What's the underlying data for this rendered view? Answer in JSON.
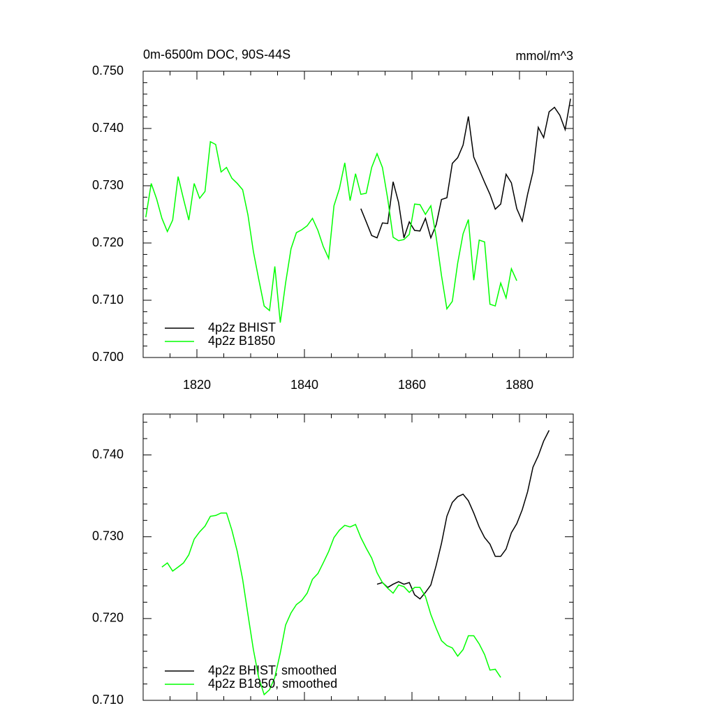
{
  "chart_data": [
    {
      "type": "line",
      "title": "0m-6500m DOC, 90S-44S",
      "units": "mmol/m^3",
      "xlim": [
        1810,
        1890
      ],
      "xticks": [
        1820,
        1840,
        1860,
        1880
      ],
      "xminorticks": [
        1815,
        1825,
        1830,
        1835,
        1845,
        1850,
        1855,
        1865,
        1870,
        1875,
        1885
      ],
      "ylim": [
        0.7,
        0.75
      ],
      "yticks": [
        {
          "value": 0.7,
          "label": "0.700"
        },
        {
          "value": 0.71,
          "label": "0.710"
        },
        {
          "value": 0.72,
          "label": "0.720"
        },
        {
          "value": 0.73,
          "label": "0.730"
        },
        {
          "value": 0.74,
          "label": "0.740"
        },
        {
          "value": 0.75,
          "label": "0.750"
        }
      ],
      "yminorticks": [
        0.702,
        0.704,
        0.706,
        0.708,
        0.712,
        0.714,
        0.716,
        0.718,
        0.722,
        0.724,
        0.726,
        0.728,
        0.732,
        0.734,
        0.736,
        0.738,
        0.742,
        0.744,
        0.746,
        0.748
      ],
      "legend": "lower left",
      "series": [
        {
          "name": "4p2z BHIST",
          "color": "#000000",
          "x": [
            1850.5,
            1851.5,
            1852.5,
            1853.5,
            1854.5,
            1855.5,
            1856.5,
            1857.5,
            1858.5,
            1859.5,
            1860.5,
            1861.5,
            1862.5,
            1863.5,
            1864.5,
            1865.5,
            1866.5,
            1867.5,
            1868.5,
            1869.5,
            1870.5,
            1871.5,
            1872.5,
            1873.5,
            1874.5,
            1875.5,
            1876.5,
            1877.5,
            1878.5,
            1879.5,
            1880.5,
            1881.5,
            1882.5,
            1883.5,
            1884.5,
            1885.5,
            1886.5,
            1887.5,
            1888.5,
            1889.5
          ],
          "values": [
            0.726,
            0.7237,
            0.7213,
            0.7209,
            0.7235,
            0.7234,
            0.7307,
            0.7271,
            0.7209,
            0.7237,
            0.7222,
            0.7221,
            0.7243,
            0.7209,
            0.7232,
            0.7276,
            0.7279,
            0.7339,
            0.7349,
            0.7371,
            0.7421,
            0.735,
            0.7328,
            0.7306,
            0.7285,
            0.7259,
            0.7268,
            0.732,
            0.7305,
            0.726,
            0.7238,
            0.7285,
            0.7324,
            0.7402,
            0.7384,
            0.7429,
            0.7437,
            0.7423,
            0.7398,
            0.7452
          ]
        },
        {
          "name": "4p2z B1850",
          "color": "#00ff00",
          "x": [
            1810.5,
            1811.5,
            1812.5,
            1813.5,
            1814.5,
            1815.5,
            1816.5,
            1817.5,
            1818.5,
            1819.5,
            1820.5,
            1821.5,
            1822.5,
            1823.5,
            1824.5,
            1825.5,
            1826.5,
            1827.5,
            1828.5,
            1829.5,
            1830.5,
            1831.5,
            1832.5,
            1833.5,
            1834.5,
            1835.5,
            1836.5,
            1837.5,
            1838.5,
            1839.5,
            1840.5,
            1841.5,
            1842.5,
            1843.5,
            1844.5,
            1845.5,
            1846.5,
            1847.5,
            1848.5,
            1849.5,
            1850.5,
            1851.5,
            1852.5,
            1853.5,
            1854.5,
            1855.5,
            1856.5,
            1857.5,
            1858.5,
            1859.5,
            1860.5,
            1861.5,
            1862.5,
            1863.5,
            1864.5,
            1865.5,
            1866.5,
            1867.5,
            1868.5,
            1869.5,
            1870.5,
            1871.5,
            1872.5,
            1873.5,
            1874.5,
            1875.5,
            1876.5,
            1877.5,
            1878.5,
            1879.5
          ],
          "values": [
            0.7245,
            0.7304,
            0.7277,
            0.7243,
            0.722,
            0.724,
            0.7316,
            0.7277,
            0.724,
            0.7304,
            0.7278,
            0.729,
            0.7377,
            0.7372,
            0.7324,
            0.7332,
            0.7313,
            0.7304,
            0.7293,
            0.7249,
            0.7185,
            0.7137,
            0.709,
            0.7082,
            0.7159,
            0.7061,
            0.713,
            0.719,
            0.7218,
            0.7223,
            0.723,
            0.7243,
            0.7222,
            0.7194,
            0.7173,
            0.7265,
            0.7295,
            0.734,
            0.7274,
            0.7321,
            0.7285,
            0.7287,
            0.7332,
            0.7356,
            0.7332,
            0.7277,
            0.721,
            0.7204,
            0.7206,
            0.7215,
            0.7268,
            0.7267,
            0.725,
            0.7265,
            0.721,
            0.7143,
            0.7085,
            0.7098,
            0.7165,
            0.7216,
            0.7241,
            0.7135,
            0.7205,
            0.7202,
            0.7093,
            0.709,
            0.713,
            0.7104,
            0.7155,
            0.7134
          ]
        }
      ]
    },
    {
      "type": "line",
      "xlim": [
        1810,
        1890
      ],
      "xticks": [
        1820,
        1840,
        1860,
        1880
      ],
      "xminorticks": [
        1815,
        1825,
        1830,
        1835,
        1845,
        1850,
        1855,
        1865,
        1870,
        1875,
        1885
      ],
      "ylim": [
        0.71,
        0.745
      ],
      "yticks": [
        {
          "value": 0.71,
          "label": "0.710"
        },
        {
          "value": 0.72,
          "label": "0.720"
        },
        {
          "value": 0.73,
          "label": "0.730"
        },
        {
          "value": 0.74,
          "label": "0.740"
        }
      ],
      "yminorticks": [
        0.712,
        0.714,
        0.716,
        0.718,
        0.722,
        0.724,
        0.726,
        0.728,
        0.732,
        0.734,
        0.736,
        0.738,
        0.742,
        0.744
      ],
      "legend": "lower left",
      "series": [
        {
          "name": "4p2z BHIST, smoothed",
          "color": "#000000",
          "x": [
            1853.5,
            1854.5,
            1855.5,
            1856.5,
            1857.5,
            1858.5,
            1859.5,
            1860.5,
            1861.5,
            1862.5,
            1863.5,
            1864.5,
            1865.5,
            1866.5,
            1867.5,
            1868.5,
            1869.5,
            1870.5,
            1871.5,
            1872.5,
            1873.5,
            1874.5,
            1875.5,
            1876.5,
            1877.5,
            1878.5,
            1879.5,
            1880.5,
            1881.5,
            1882.5,
            1883.5,
            1884.5,
            1885.5
          ],
          "values": [
            0.7242,
            0.7244,
            0.7238,
            0.7242,
            0.7245,
            0.7242,
            0.7244,
            0.7229,
            0.7224,
            0.7232,
            0.7241,
            0.7265,
            0.7292,
            0.7325,
            0.7342,
            0.7349,
            0.7352,
            0.7344,
            0.7329,
            0.7312,
            0.7299,
            0.7291,
            0.7276,
            0.7276,
            0.7285,
            0.7305,
            0.7316,
            0.7333,
            0.7355,
            0.7385,
            0.7399,
            0.7417,
            0.743
          ]
        },
        {
          "name": "4p2z B1850, smoothed",
          "color": "#00ff00",
          "x": [
            1813.5,
            1814.5,
            1815.5,
            1816.5,
            1817.5,
            1818.5,
            1819.5,
            1820.5,
            1821.5,
            1822.5,
            1823.5,
            1824.5,
            1825.5,
            1826.5,
            1827.5,
            1828.5,
            1829.5,
            1830.5,
            1831.5,
            1832.5,
            1833.5,
            1834.5,
            1835.5,
            1836.5,
            1837.5,
            1838.5,
            1839.5,
            1840.5,
            1841.5,
            1842.5,
            1843.5,
            1844.5,
            1845.5,
            1846.5,
            1847.5,
            1848.5,
            1849.5,
            1850.5,
            1851.5,
            1852.5,
            1853.5,
            1854.5,
            1855.5,
            1856.5,
            1857.5,
            1858.5,
            1859.5,
            1860.5,
            1861.5,
            1862.5,
            1863.5,
            1864.5,
            1865.5,
            1866.5,
            1867.5,
            1868.5,
            1869.5,
            1870.5,
            1871.5,
            1872.5,
            1873.5,
            1874.5,
            1875.5,
            1876.5
          ],
          "values": [
            0.7263,
            0.7268,
            0.7258,
            0.7263,
            0.7268,
            0.7278,
            0.7297,
            0.7306,
            0.7313,
            0.7325,
            0.7326,
            0.7329,
            0.7329,
            0.7308,
            0.7282,
            0.7248,
            0.7205,
            0.7162,
            0.7128,
            0.7107,
            0.7113,
            0.7128,
            0.7158,
            0.7192,
            0.7207,
            0.7217,
            0.7222,
            0.7231,
            0.7248,
            0.7255,
            0.7268,
            0.7282,
            0.7299,
            0.7308,
            0.7314,
            0.7312,
            0.7315,
            0.7299,
            0.7286,
            0.7274,
            0.7256,
            0.7244,
            0.7237,
            0.7231,
            0.7241,
            0.7239,
            0.7232,
            0.7238,
            0.7238,
            0.7227,
            0.7205,
            0.7188,
            0.7173,
            0.7167,
            0.7164,
            0.7154,
            0.7162,
            0.7179,
            0.7179,
            0.7169,
            0.7156,
            0.7137,
            0.7138,
            0.7128
          ]
        }
      ]
    }
  ]
}
